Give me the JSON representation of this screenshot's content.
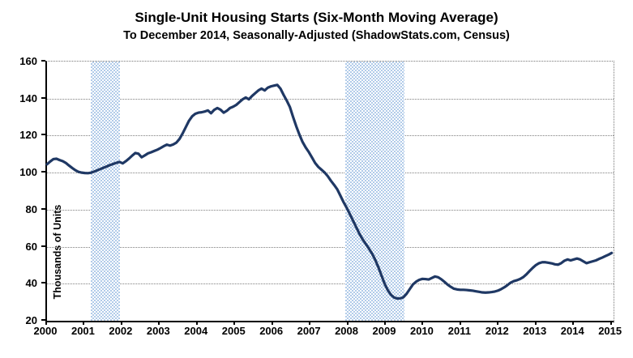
{
  "title": "Single-Unit Housing Starts (Six-Month Moving Average)",
  "subtitle": "To December 2014, Seasonally-Adjusted (ShadowStats.com, Census)",
  "chart_data": {
    "type": "line",
    "title": "Single-Unit Housing Starts (Six-Month Moving Average)",
    "subtitle": "To December 2014, Seasonally-Adjusted (ShadowStats.com, Census)",
    "xlabel": "",
    "ylabel": "Thousands of Units",
    "ylim": [
      20,
      160
    ],
    "xlim": [
      2000,
      2015.05
    ],
    "y_ticks": [
      20,
      40,
      60,
      80,
      100,
      120,
      140,
      160
    ],
    "x_ticks": [
      2000,
      2001,
      2002,
      2003,
      2004,
      2005,
      2006,
      2007,
      2008,
      2009,
      2010,
      2011,
      2012,
      2013,
      2014,
      2015
    ],
    "grid": "horizontal-dotted",
    "legend_position": "none",
    "line_color": "#1f3864",
    "line_width": 3.2,
    "background_color": "#ffffff",
    "recession_band_color": "#b1cbe9",
    "shaded_regions": [
      {
        "name": "recession-2001",
        "start": 2001.17,
        "end": 2001.93
      },
      {
        "name": "recession-2008-09",
        "start": 2007.92,
        "end": 2009.5
      }
    ],
    "series": [
      {
        "name": "Single-unit housing starts, six-month moving average (thousands of units)",
        "x_start": 2000.0,
        "x_end": 2015.0,
        "frequency": "monthly",
        "values": [
          104.5,
          106.0,
          107.3,
          107.5,
          106.8,
          106.2,
          105.2,
          103.8,
          102.5,
          101.3,
          100.4,
          100.0,
          99.8,
          99.7,
          100.0,
          100.6,
          101.3,
          102.0,
          102.7,
          103.4,
          104.1,
          104.7,
          105.3,
          105.8,
          105.0,
          106.2,
          107.6,
          109.2,
          110.6,
          110.2,
          108.3,
          109.3,
          110.4,
          111.0,
          111.7,
          112.4,
          113.3,
          114.3,
          115.1,
          114.6,
          115.2,
          116.2,
          118.2,
          121.2,
          124.6,
          128.0,
          130.4,
          131.8,
          132.4,
          132.6,
          133.0,
          133.6,
          132.1,
          133.9,
          134.9,
          134.0,
          132.4,
          133.4,
          134.9,
          135.6,
          136.6,
          138.1,
          139.6,
          140.6,
          139.6,
          141.4,
          142.9,
          144.4,
          145.4,
          144.4,
          145.9,
          146.6,
          147.0,
          147.4,
          145.4,
          142.0,
          138.9,
          135.4,
          130.1,
          125.1,
          120.6,
          116.6,
          113.6,
          111.1,
          108.2,
          105.2,
          103.1,
          101.6,
          100.1,
          98.1,
          95.6,
          93.4,
          91.0,
          87.6,
          84.1,
          81.0,
          77.6,
          74.1,
          70.6,
          67.1,
          64.1,
          61.6,
          59.1,
          56.4,
          53.1,
          49.1,
          44.6,
          40.1,
          36.6,
          34.1,
          32.6,
          32.0,
          32.1,
          32.7,
          34.6,
          37.1,
          39.6,
          41.1,
          42.1,
          42.6,
          42.5,
          42.3,
          43.1,
          43.9,
          43.5,
          42.4,
          41.0,
          39.5,
          38.3,
          37.3,
          36.9,
          36.7,
          36.7,
          36.6,
          36.4,
          36.2,
          35.9,
          35.6,
          35.3,
          35.2,
          35.3,
          35.5,
          35.8,
          36.3,
          37.1,
          38.1,
          39.3,
          40.6,
          41.4,
          41.9,
          42.6,
          43.6,
          45.1,
          46.9,
          48.6,
          50.1,
          51.1,
          51.6,
          51.6,
          51.3,
          51.0,
          50.5,
          50.3,
          51.1,
          52.4,
          53.1,
          52.6,
          53.1,
          53.6,
          53.1,
          52.1,
          51.1,
          51.6,
          52.1,
          52.6,
          53.4,
          54.1,
          54.9,
          55.7,
          56.6
        ]
      }
    ]
  }
}
